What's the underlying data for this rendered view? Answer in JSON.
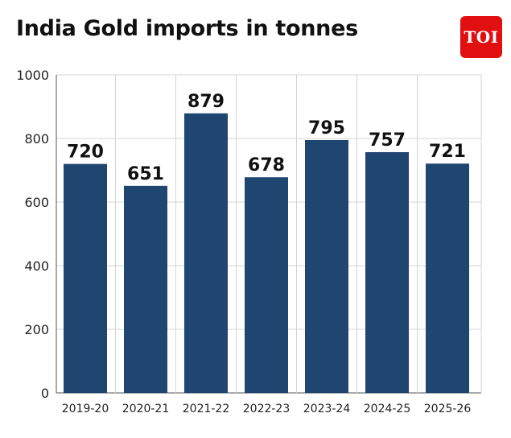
{
  "brand": {
    "logo_text": "TOI"
  },
  "chart_data": {
    "type": "bar",
    "title": "India Gold imports in tonnes",
    "categories": [
      "2019-20",
      "2020-21",
      "2021-22",
      "2022-23",
      "2023-24",
      "2024-25",
      "2025-26"
    ],
    "values": [
      720,
      651,
      879,
      678,
      795,
      757,
      721
    ],
    "data_labels": [
      "720",
      "651",
      "879",
      "678",
      "795",
      "757",
      "721"
    ],
    "yticks": [
      0,
      200,
      400,
      600,
      800,
      1000
    ],
    "ylim": [
      0,
      1000
    ],
    "xlabel": "",
    "ylabel": "",
    "grid": true,
    "colors": {
      "bar": "#1f4571",
      "grid": "#d4d4d4",
      "axis": "#555555"
    }
  }
}
